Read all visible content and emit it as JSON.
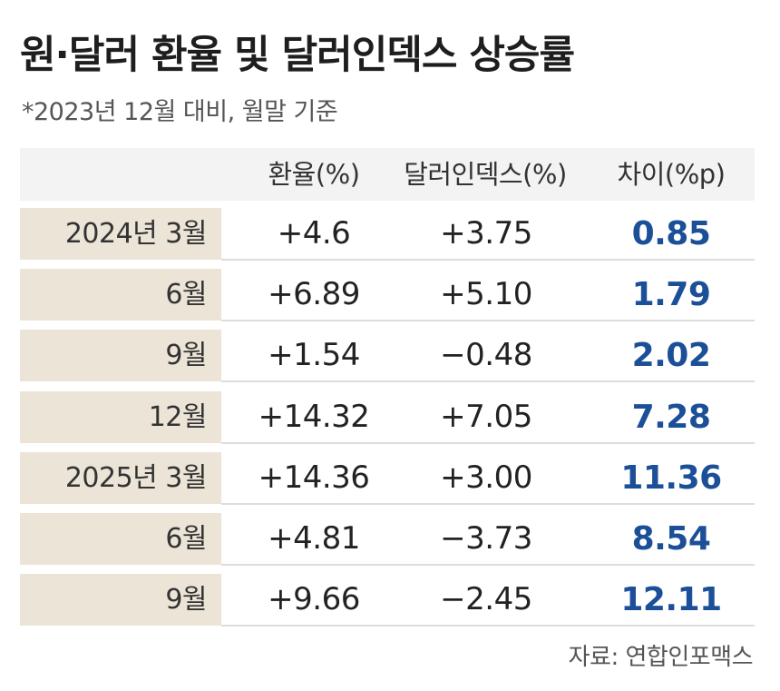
{
  "title": "원·달러 환율 및 달러인덱스 상승률",
  "subtitle": "*2023년 12월 대비, 월말 기준",
  "source": "자료: 연합인포맥스",
  "colors": {
    "label_bg": "#ebe4d7",
    "header_bg": "#f3f3f3",
    "diff_text": "#1b4f97"
  },
  "chart_data": {
    "type": "table",
    "title": "원·달러 환율 및 달러인덱스 상승률",
    "subtitle": "*2023년 12월 대비, 월말 기준",
    "columns": [
      "",
      "환율(%)",
      "달러인덱스(%)",
      "차이(%p)"
    ],
    "rows": [
      {
        "period": "2024년 3월",
        "fx": "+4.6",
        "dxy": "+3.75",
        "diff": "0.85"
      },
      {
        "period": "6월",
        "fx": "+6.89",
        "dxy": "+5.10",
        "diff": "1.79"
      },
      {
        "period": "9월",
        "fx": "+1.54",
        "dxy": "−0.48",
        "diff": "2.02"
      },
      {
        "period": "12월",
        "fx": "+14.32",
        "dxy": "+7.05",
        "diff": "7.28"
      },
      {
        "period": "2025년 3월",
        "fx": "+14.36",
        "dxy": "+3.00",
        "diff": "11.36"
      },
      {
        "period": "6월",
        "fx": "+4.81",
        "dxy": "−3.73",
        "diff": "8.54"
      },
      {
        "period": "9월",
        "fx": "+9.66",
        "dxy": "−2.45",
        "diff": "12.11"
      }
    ]
  }
}
